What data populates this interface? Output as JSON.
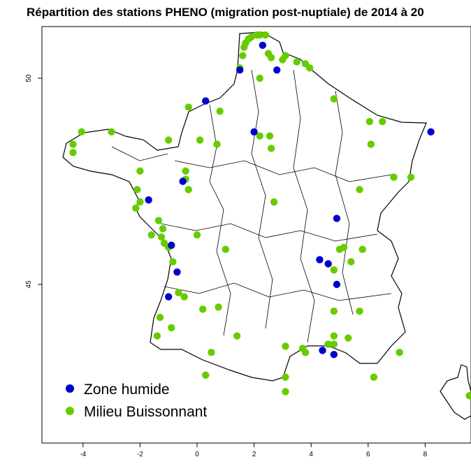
{
  "title": "Répartition des stations PHENO (migration post-nuptiale) de 2014 à 20",
  "colors": {
    "zone_humide": "#0000cc",
    "milieu_buissonnant": "#66cc00",
    "border": "#000000"
  },
  "axes": {
    "x_ticks": [
      "-4",
      "-2",
      "0",
      "2",
      "4",
      "6",
      "8"
    ],
    "y_ticks": [
      "45",
      "50"
    ],
    "xlim": [
      -5.5,
      9.5
    ],
    "ylim": [
      41.2,
      51.5
    ]
  },
  "legend": {
    "items": [
      {
        "label": "Zone humide",
        "color": "#0000cc"
      },
      {
        "label": "Milieu Buissonnant",
        "color": "#66cc00"
      }
    ]
  },
  "chart_data": {
    "type": "scatter",
    "title": "Répartition des stations PHENO (migration post-nuptiale) de 2014 à 20",
    "xlabel": "",
    "ylabel": "",
    "xlim": [
      -5.5,
      9.5
    ],
    "ylim": [
      41.2,
      51.5
    ],
    "series": [
      {
        "name": "Zone humide",
        "color": "#0000cc",
        "points": [
          [
            2.3,
            50.8
          ],
          [
            1.5,
            50.2
          ],
          [
            2.8,
            50.2
          ],
          [
            0.3,
            49.45
          ],
          [
            2.0,
            48.7
          ],
          [
            8.2,
            48.7
          ],
          [
            -0.5,
            47.5
          ],
          [
            -1.7,
            47.05
          ],
          [
            4.9,
            46.6
          ],
          [
            -0.9,
            45.95
          ],
          [
            4.3,
            45.6
          ],
          [
            4.6,
            45.5
          ],
          [
            -0.7,
            45.3
          ],
          [
            4.9,
            45.0
          ],
          [
            -1.0,
            44.7
          ],
          [
            4.4,
            43.4
          ],
          [
            4.8,
            43.3
          ]
        ]
      },
      {
        "name": "Milieu Buissonnant",
        "color": "#66cc00",
        "points": [
          [
            1.65,
            50.75
          ],
          [
            1.7,
            50.85
          ],
          [
            1.8,
            50.95
          ],
          [
            1.9,
            51.0
          ],
          [
            2.1,
            51.05
          ],
          [
            2.2,
            51.05
          ],
          [
            2.4,
            51.05
          ],
          [
            1.6,
            50.55
          ],
          [
            2.5,
            50.6
          ],
          [
            2.6,
            50.5
          ],
          [
            3.0,
            50.45
          ],
          [
            3.1,
            50.55
          ],
          [
            3.5,
            50.4
          ],
          [
            3.8,
            50.35
          ],
          [
            3.95,
            50.25
          ],
          [
            1.5,
            50.25
          ],
          [
            2.2,
            50.0
          ],
          [
            0.8,
            49.2
          ],
          [
            -0.3,
            49.3
          ],
          [
            4.8,
            49.5
          ],
          [
            6.05,
            48.95
          ],
          [
            6.5,
            48.95
          ],
          [
            -4.05,
            48.7
          ],
          [
            -3.0,
            48.7
          ],
          [
            2.2,
            48.6
          ],
          [
            2.55,
            48.6
          ],
          [
            -4.35,
            48.4
          ],
          [
            -4.35,
            48.2
          ],
          [
            -1.0,
            48.5
          ],
          [
            0.1,
            48.5
          ],
          [
            0.7,
            48.4
          ],
          [
            2.6,
            48.3
          ],
          [
            6.1,
            48.4
          ],
          [
            -2.0,
            47.75
          ],
          [
            -0.4,
            47.75
          ],
          [
            -0.4,
            47.55
          ],
          [
            6.9,
            47.6
          ],
          [
            7.5,
            47.6
          ],
          [
            -2.1,
            47.3
          ],
          [
            -0.3,
            47.3
          ],
          [
            5.7,
            47.3
          ],
          [
            -2.0,
            47.0
          ],
          [
            -2.15,
            46.85
          ],
          [
            2.7,
            47.0
          ],
          [
            -1.35,
            46.55
          ],
          [
            -1.2,
            46.35
          ],
          [
            -1.6,
            46.2
          ],
          [
            0.0,
            46.2
          ],
          [
            -1.25,
            46.15
          ],
          [
            -1.15,
            46.0
          ],
          [
            -1.0,
            45.9
          ],
          [
            1.0,
            45.85
          ],
          [
            5.0,
            45.85
          ],
          [
            5.15,
            45.9
          ],
          [
            5.8,
            45.85
          ],
          [
            -0.85,
            45.55
          ],
          [
            5.4,
            45.55
          ],
          [
            4.8,
            45.35
          ],
          [
            -0.65,
            44.8
          ],
          [
            -0.45,
            44.7
          ],
          [
            0.2,
            44.4
          ],
          [
            0.75,
            44.45
          ],
          [
            -1.3,
            44.2
          ],
          [
            4.8,
            44.35
          ],
          [
            5.7,
            44.35
          ],
          [
            -0.9,
            43.95
          ],
          [
            -1.4,
            43.75
          ],
          [
            4.8,
            43.75
          ],
          [
            1.4,
            43.75
          ],
          [
            5.3,
            43.7
          ],
          [
            4.6,
            43.55
          ],
          [
            4.8,
            43.55
          ],
          [
            3.1,
            43.5
          ],
          [
            3.7,
            43.45
          ],
          [
            3.8,
            43.35
          ],
          [
            7.1,
            43.35
          ],
          [
            0.5,
            43.35
          ],
          [
            0.3,
            42.8
          ],
          [
            3.1,
            42.75
          ],
          [
            6.2,
            42.75
          ],
          [
            3.1,
            42.4
          ],
          [
            9.55,
            42.3
          ]
        ]
      }
    ]
  }
}
